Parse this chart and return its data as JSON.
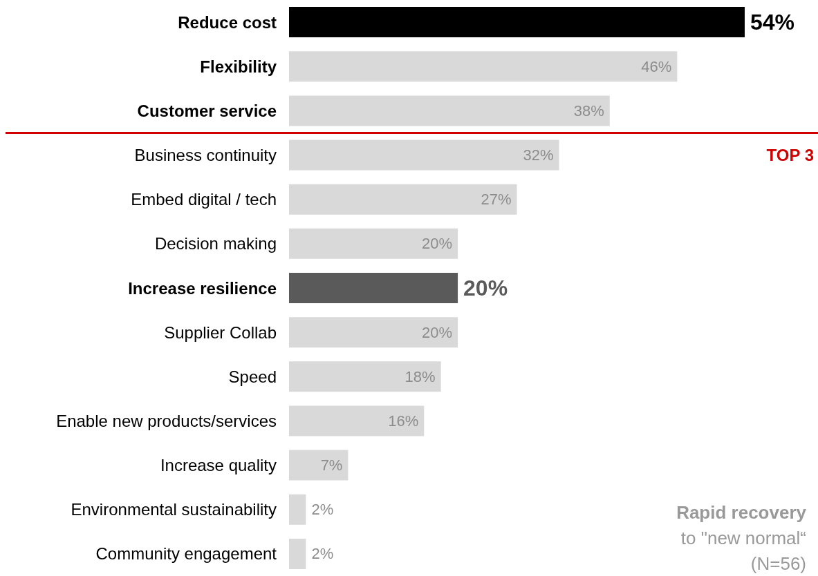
{
  "chart_data": {
    "type": "bar",
    "orientation": "horizontal",
    "categories": [
      "Reduce cost",
      "Flexibility",
      "Customer service",
      "Business continuity",
      "Embed digital / tech",
      "Decision making",
      "Increase resilience",
      "Supplier Collab",
      "Speed",
      "Enable new products/services",
      "Increase quality",
      "Environmental sustainability",
      "Community engagement"
    ],
    "values": [
      54,
      46,
      38,
      32,
      27,
      20,
      20,
      20,
      18,
      16,
      7,
      2,
      2
    ],
    "value_labels": [
      "54%",
      "46%",
      "38%",
      "32%",
      "27%",
      "20%",
      "20%",
      "20%",
      "18%",
      "16%",
      "7%",
      "2%",
      "2%"
    ],
    "colors": [
      "#000000",
      "#d9d9d9",
      "#d9d9d9",
      "#d9d9d9",
      "#d9d9d9",
      "#d9d9d9",
      "#5a5a5a",
      "#d9d9d9",
      "#d9d9d9",
      "#d9d9d9",
      "#d9d9d9",
      "#d9d9d9",
      "#d9d9d9"
    ],
    "ref_lines": [
      {
        "axis": "y",
        "value": "Customer service",
        "label": "TOP 3",
        "color": "#d00000"
      }
    ],
    "annotations": [
      "Rapid recovery",
      "to \"new normal“",
      "(N=56)"
    ]
  }
}
